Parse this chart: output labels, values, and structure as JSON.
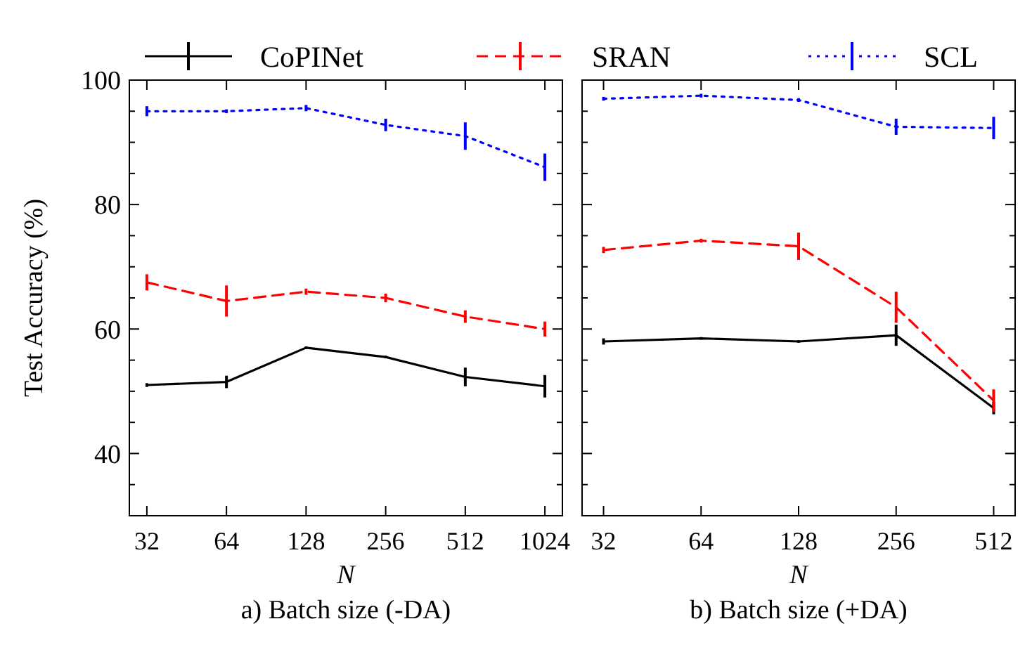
{
  "chart_data": [
    {
      "type": "line",
      "title": "a) Batch size (-DA)",
      "xlabel": "N",
      "ylabel": "Test Accuracy (%)",
      "legend": "top",
      "marker": "none",
      "categories": [
        "32",
        "64",
        "128",
        "256",
        "512",
        "1024"
      ],
      "ylim": [
        30,
        100
      ],
      "yticks": [
        {
          "value": 35,
          "label": null
        },
        40,
        {
          "value": 45,
          "label": null
        },
        {
          "value": 50,
          "label": null
        },
        {
          "value": 55,
          "label": null
        },
        60,
        {
          "value": 65,
          "label": null
        },
        {
          "value": 70,
          "label": null
        },
        {
          "value": 75,
          "label": null
        },
        80,
        {
          "value": 85,
          "label": null
        },
        {
          "value": 90,
          "label": null
        },
        {
          "value": 95,
          "label": null
        },
        100
      ],
      "series": [
        {
          "name": "CoPINet",
          "color": "#000000",
          "line_style": "solid",
          "values": [
            51,
            51.5,
            57,
            55.5,
            52.3,
            50.8
          ],
          "errors": [
            0.3,
            1,
            0.2,
            0.2,
            1.5,
            1.8
          ]
        },
        {
          "name": "SRAN",
          "color": "#ff0000",
          "line_style": "dashed",
          "values": [
            67.5,
            64.5,
            66,
            65,
            62,
            60
          ],
          "errors": [
            1.3,
            2.5,
            0.5,
            0.7,
            1,
            1.2
          ]
        },
        {
          "name": "SCL",
          "color": "#0000ff",
          "line_style": "dotted",
          "values": [
            95,
            95,
            95.5,
            92.8,
            91,
            86
          ],
          "errors": [
            0.8,
            0.3,
            0.5,
            1,
            2.2,
            2.2
          ]
        }
      ]
    },
    {
      "type": "line",
      "title": "b) Batch size (+DA)",
      "xlabel": "N",
      "tick_labels": "x",
      "marker": "none",
      "categories": [
        "32",
        "64",
        "128",
        "256",
        "512"
      ],
      "ylim": [
        30,
        100
      ],
      "yticks": [
        {
          "value": 35,
          "label": null
        },
        40,
        {
          "value": 45,
          "label": null
        },
        {
          "value": 50,
          "label": null
        },
        {
          "value": 55,
          "label": null
        },
        60,
        {
          "value": 65,
          "label": null
        },
        {
          "value": 70,
          "label": null
        },
        {
          "value": 75,
          "label": null
        },
        80,
        {
          "value": 85,
          "label": null
        },
        {
          "value": 90,
          "label": null
        },
        {
          "value": 95,
          "label": null
        },
        100
      ],
      "series": [
        {
          "color": "#000000",
          "line_style": "solid",
          "values": [
            58,
            58.5,
            58,
            59,
            47.3
          ],
          "errors": [
            0.5,
            0.2,
            0.2,
            1.7,
            1
          ]
        },
        {
          "color": "#ff0000",
          "line_style": "dashed",
          "values": [
            72.7,
            74.2,
            73.3,
            63.5,
            48.5
          ],
          "errors": [
            0.5,
            0.3,
            2.2,
            2.5,
            1.8
          ]
        },
        {
          "color": "#0000ff",
          "line_style": "dotted",
          "values": [
            97,
            97.5,
            96.8,
            92.5,
            92.3
          ],
          "errors": [
            0.3,
            0.3,
            0.3,
            1.3,
            1.8
          ]
        }
      ]
    }
  ]
}
